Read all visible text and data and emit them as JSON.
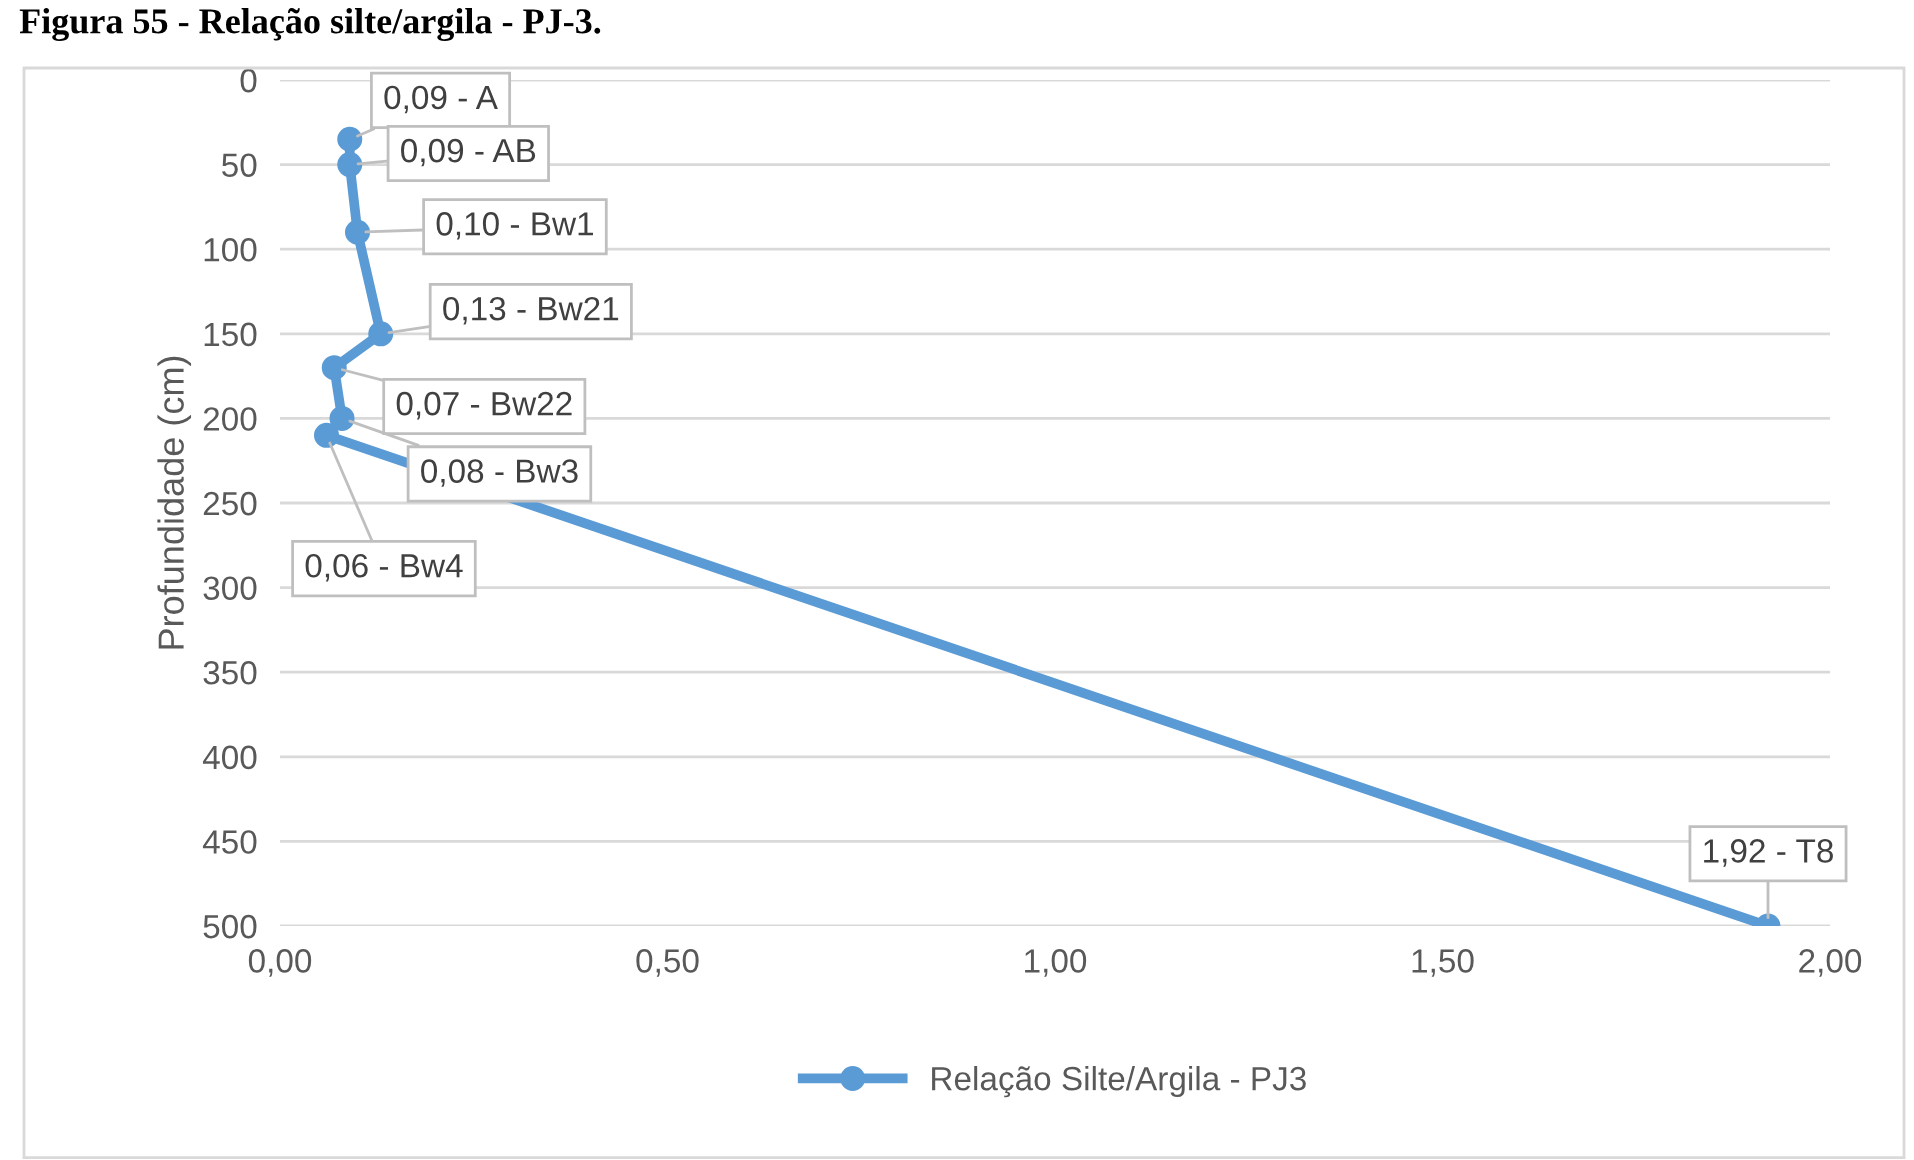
{
  "chart_data": {
    "type": "line",
    "title": "Figura 55 - Relação silte/argila - PJ-3.",
    "ylabel": "Profundidade (cm)",
    "x": [
      0.09,
      0.09,
      0.1,
      0.13,
      0.07,
      0.08,
      0.06,
      1.92
    ],
    "series": [
      {
        "name": "Relação Silte/Argila - PJ3",
        "color": "#5b9bd5",
        "values": [
          35,
          50,
          90,
          150,
          170,
          200,
          210,
          500
        ]
      }
    ],
    "annotations": [
      {
        "text": "0,09 - A",
        "x": 0.09,
        "y": 35
      },
      {
        "text": "0,09 - AB",
        "x": 0.09,
        "y": 50
      },
      {
        "text": "0,10 - Bw1",
        "x": 0.1,
        "y": 90
      },
      {
        "text": "0,13 - Bw21",
        "x": 0.13,
        "y": 150
      },
      {
        "text": "0,07 - Bw22",
        "x": 0.07,
        "y": 170
      },
      {
        "text": "0,08 - Bw3",
        "x": 0.08,
        "y": 200
      },
      {
        "text": "0,06 - Bw4",
        "x": 0.06,
        "y": 210
      },
      {
        "text": "1,92 - T8",
        "x": 1.92,
        "y": 500
      }
    ],
    "xlim": [
      0,
      2
    ],
    "xticks": [
      {
        "value": 0,
        "label": "0,00"
      },
      {
        "value": 0.5,
        "label": "0,50"
      },
      {
        "value": 1,
        "label": "1,00"
      },
      {
        "value": 1.5,
        "label": "1,50"
      },
      {
        "value": 2,
        "label": "2,00"
      }
    ],
    "ylim": [
      500,
      0
    ],
    "yticks": [
      0,
      50,
      100,
      150,
      200,
      250,
      300,
      350,
      400,
      450,
      500
    ],
    "grid": "y",
    "legend": "bottom",
    "marker": "circle",
    "line_style": "solid"
  }
}
